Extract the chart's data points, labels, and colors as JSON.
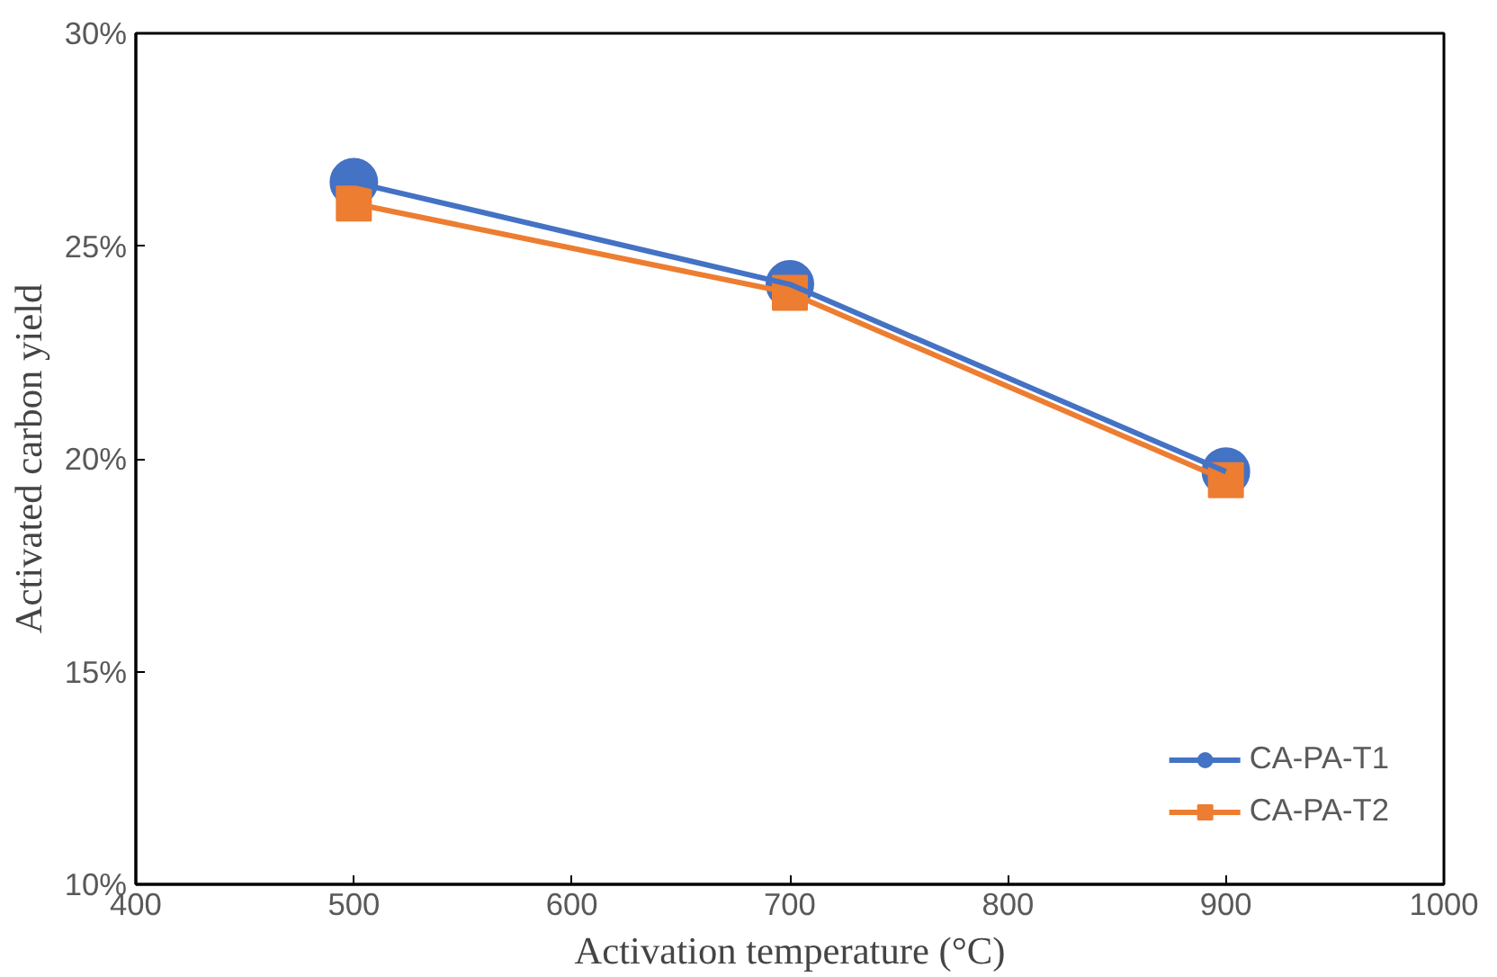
{
  "chart_data": {
    "type": "line",
    "xlabel": "Activation temperature (°C)",
    "ylabel": "Activated carbon yield",
    "x": [
      500,
      700,
      900
    ],
    "series": [
      {
        "name": "CA-PA-T1",
        "color": "#4472c4",
        "values": [
          26.5,
          24.1,
          19.7
        ],
        "marker": "circle"
      },
      {
        "name": "CA-PA-T2",
        "color": "#ed7d31",
        "values": [
          26.0,
          23.9,
          19.5
        ],
        "marker": "square"
      }
    ],
    "xlim": [
      400,
      1000
    ],
    "xticks": [
      400,
      500,
      600,
      700,
      800,
      900,
      1000
    ],
    "ylim": [
      10,
      30
    ],
    "yticks": [
      {
        "value": 10,
        "label": "10%"
      },
      {
        "value": 15,
        "label": "15%"
      },
      {
        "value": 20,
        "label": "20%"
      },
      {
        "value": 25,
        "label": "25%"
      },
      {
        "value": 30,
        "label": "30%"
      }
    ],
    "grid": false,
    "legend": "bottom right",
    "line_style": "solid"
  }
}
